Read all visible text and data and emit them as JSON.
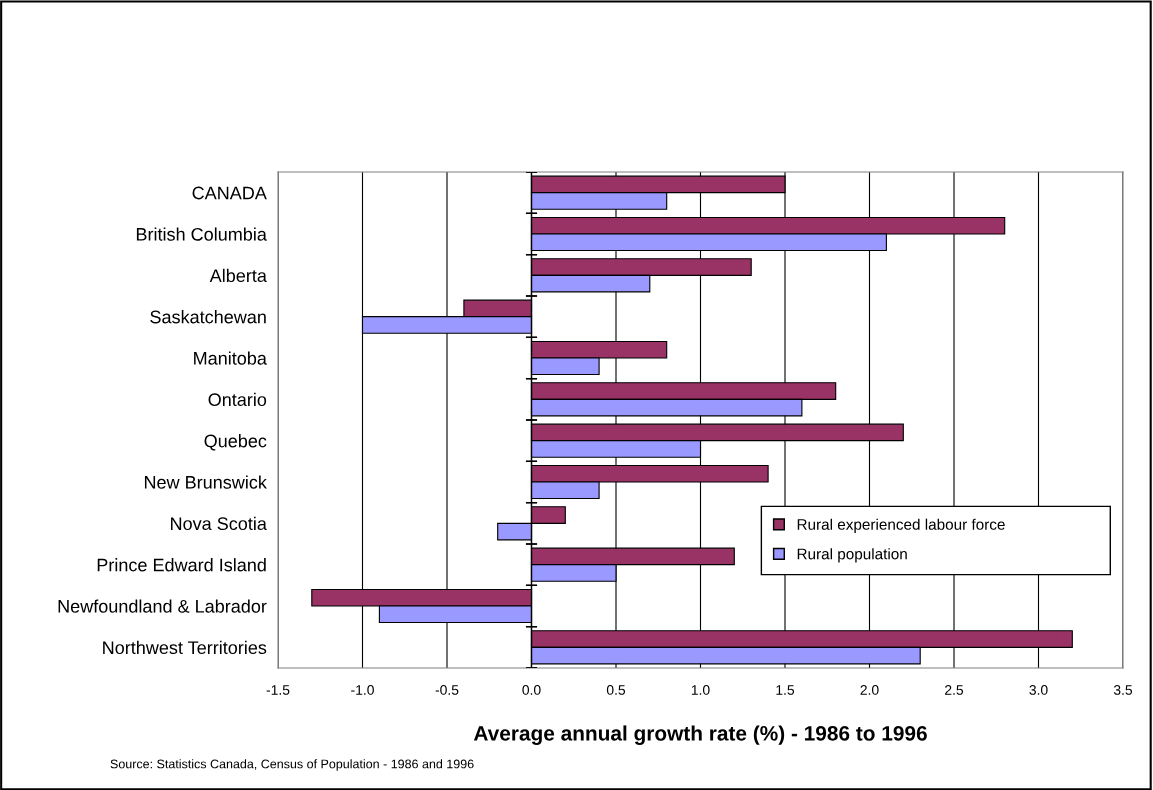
{
  "chart_data": {
    "type": "bar",
    "orientation": "horizontal",
    "xlabel": "Average annual growth rate (%) - 1986 to 1996",
    "categories": [
      "CANADA",
      "British Columbia",
      "Alberta",
      "Saskatchewan",
      "Manitoba",
      "Ontario",
      "Quebec",
      "New Brunswick",
      "Nova Scotia",
      "Prince Edward Island",
      "Newfoundland & Labrador",
      "Northwest Territories"
    ],
    "series": [
      {
        "name": "Rural experienced labour force",
        "color": "#993366",
        "values": [
          1.5,
          2.8,
          1.3,
          -0.4,
          0.8,
          1.8,
          2.2,
          1.4,
          0.2,
          1.2,
          -1.3,
          3.2
        ]
      },
      {
        "name": "Rural population",
        "color": "#9999ff",
        "values": [
          0.8,
          2.1,
          0.7,
          -1.0,
          0.4,
          1.6,
          1.0,
          0.4,
          -0.2,
          0.5,
          -0.9,
          2.3
        ]
      }
    ],
    "xlim": [
      -1.5,
      3.5
    ],
    "xticks": [
      {
        "value": -1.5,
        "label": "-1.5"
      },
      {
        "value": -1.0,
        "label": "-1.0"
      },
      {
        "value": -0.5,
        "label": "-0.5"
      },
      {
        "value": 0,
        "label": "0.0"
      },
      {
        "value": 0.5,
        "label": "0.5"
      },
      {
        "value": 1.0,
        "label": "1.0"
      },
      {
        "value": 1.5,
        "label": "1.5"
      },
      {
        "value": 2.0,
        "label": "2.0"
      },
      {
        "value": 2.5,
        "label": "2.5"
      },
      {
        "value": 3.0,
        "label": "3.0"
      },
      {
        "value": 3.5,
        "label": "3.5"
      }
    ],
    "grid": "x",
    "legend": "right",
    "annotations": [
      "Source: Statistics Canada, Census of Population - 1986 and 1996"
    ]
  }
}
